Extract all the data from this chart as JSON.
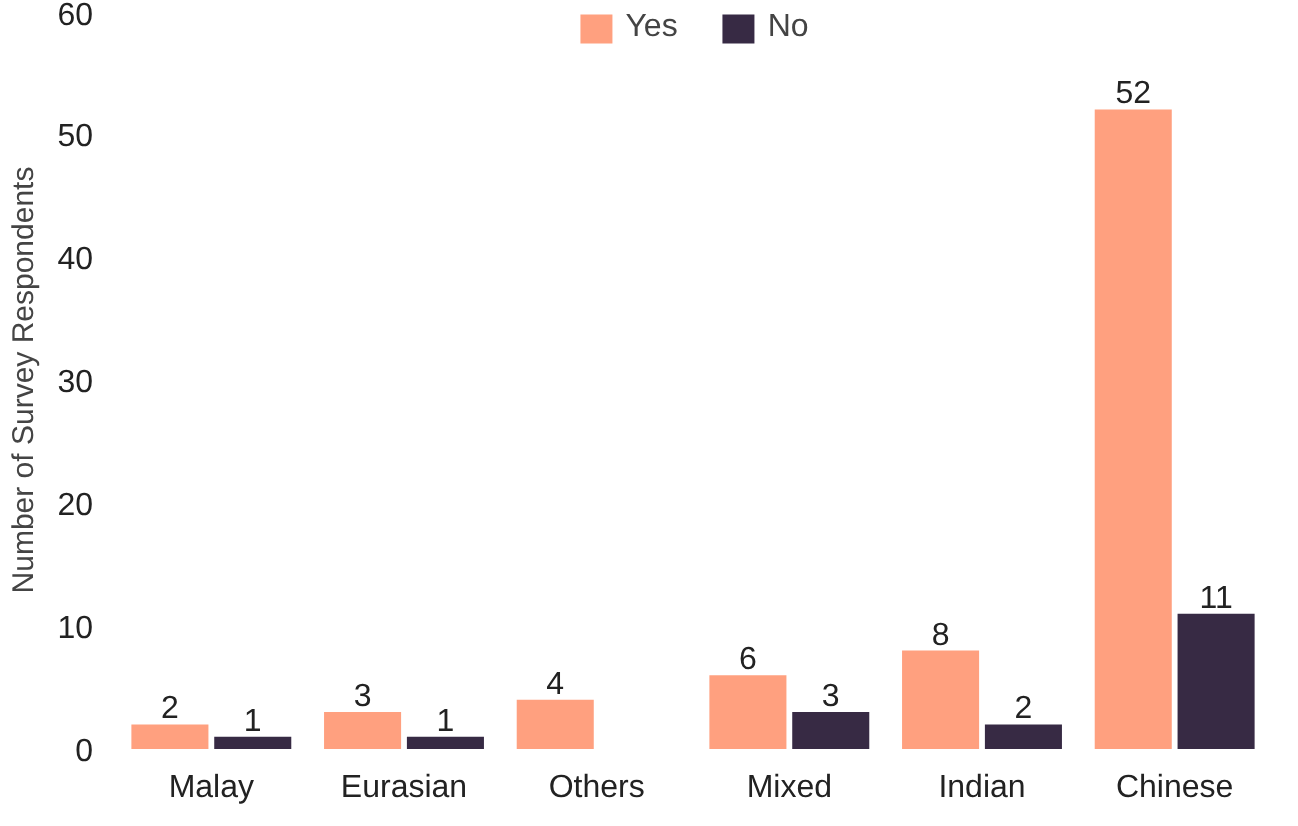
{
  "chart_data": {
    "type": "bar",
    "ylabel": "Number of Survey Respondents",
    "categories": [
      "Malay",
      "Eurasian",
      "Others",
      "Mixed",
      "Indian",
      "Chinese"
    ],
    "series": [
      {
        "name": "Yes",
        "color": "#ffa07f",
        "values": [
          2,
          3,
          4,
          6,
          8,
          52
        ]
      },
      {
        "name": "No",
        "color": "#372a44",
        "values": [
          1,
          1,
          null,
          3,
          2,
          11
        ]
      }
    ],
    "ylim": [
      0,
      60
    ],
    "yticks": [
      0,
      10,
      20,
      30,
      40,
      50,
      60
    ],
    "grid": false,
    "legend": "top",
    "data_labels": true
  }
}
